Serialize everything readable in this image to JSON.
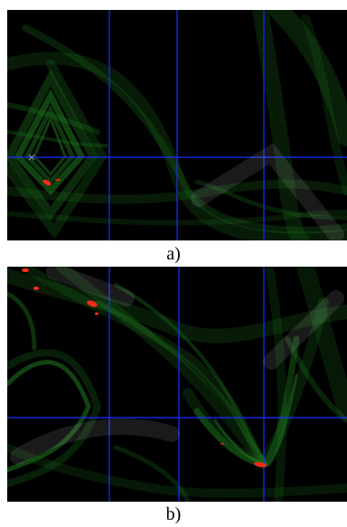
{
  "figure": {
    "panel_a": {
      "caption": "a)",
      "background": "#000000",
      "grid_color": "#1a2fff",
      "curve_color": "#1f7a1f",
      "highlight_color": "#ff2a1a"
    },
    "panel_b": {
      "caption": "b)",
      "background": "#000000",
      "grid_color": "#1a2fff",
      "curve_color": "#1f7a1f",
      "highlight_color": "#ff2a1a"
    },
    "watermark_color": "#e6e6e6"
  }
}
